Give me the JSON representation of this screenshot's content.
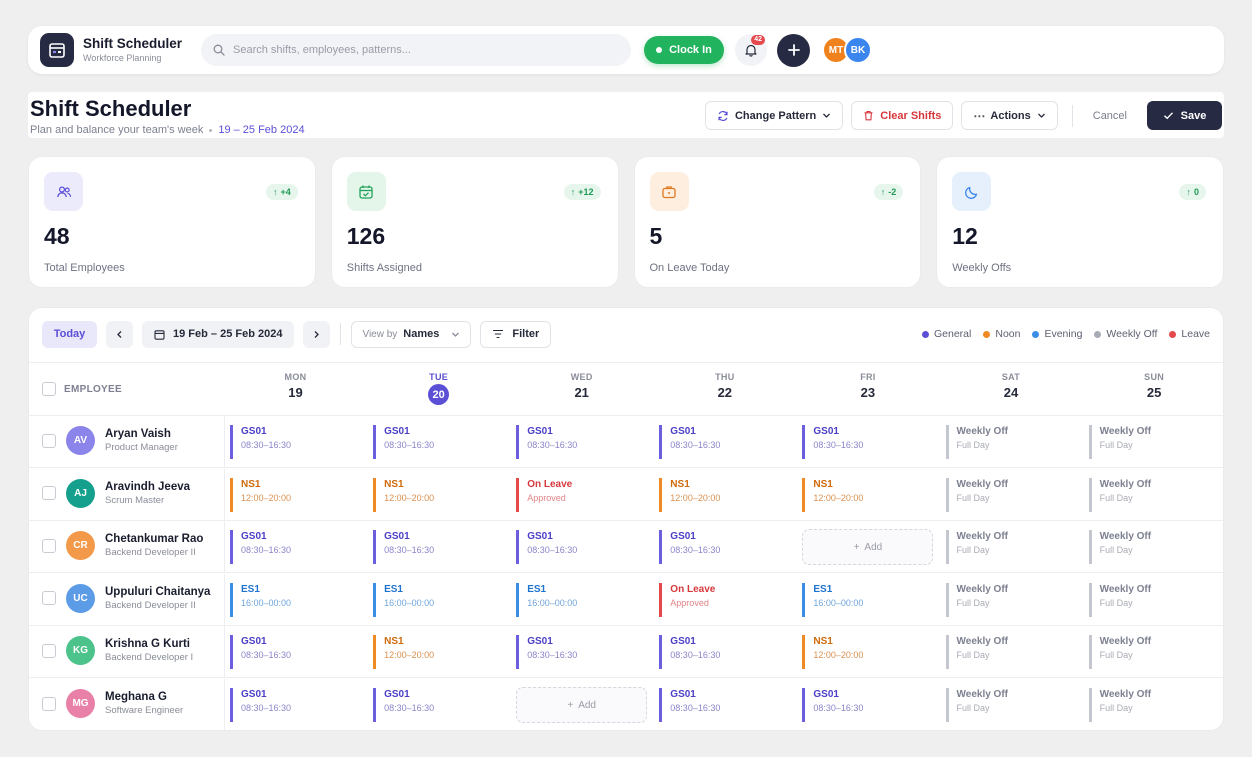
{
  "app": {
    "title": "Shift Scheduler",
    "subtitle": "Workforce Planning",
    "search_placeholder": "Search shifts, employees, patterns...",
    "clock_in_label": "Clock In",
    "notification_count": "42",
    "avatars": [
      {
        "initials": "MT",
        "color": "#f0821e"
      },
      {
        "initials": "BK",
        "color": "#3a86ee"
      }
    ]
  },
  "header": {
    "title": "Shift Scheduler",
    "subtitle": "Plan and balance your team's week",
    "week_range": "19 – 25 Feb 2024",
    "change_pattern_label": "Change Pattern",
    "clear_shifts_label": "Clear Shifts",
    "actions_label": "Actions",
    "cancel_label": "Cancel",
    "save_label": "Save"
  },
  "stats": [
    {
      "value": "48",
      "label": "Total Employees",
      "delta": "+4",
      "icon": "users-icon",
      "bg": "#ecebfb",
      "fg": "#5b4fd6"
    },
    {
      "value": "126",
      "label": "Shifts Assigned",
      "delta": "+12",
      "icon": "calendar-check-icon",
      "bg": "#e4f5ea",
      "fg": "#22a35a"
    },
    {
      "value": "5",
      "label": "On Leave Today",
      "delta": "-2",
      "icon": "briefcase-icon",
      "bg": "#fdeee0",
      "fg": "#e07a1f"
    },
    {
      "value": "12",
      "label": "Weekly Offs",
      "delta": "0",
      "icon": "moon-icon",
      "bg": "#e6f0fc",
      "fg": "#3a86ee"
    }
  ],
  "toolbar": {
    "today_label": "Today",
    "range_label": "19 Feb – 25 Feb 2024",
    "view_by_label": "View by",
    "view_by_value": "Names",
    "filter_label": "Filter"
  },
  "legend": [
    {
      "label": "General",
      "color": "#5b4fd6"
    },
    {
      "label": "Noon",
      "color": "#f08a24"
    },
    {
      "label": "Evening",
      "color": "#3a8ee6"
    },
    {
      "label": "Weekly Off",
      "color": "#a9abb5"
    },
    {
      "label": "Leave",
      "color": "#e5484d"
    }
  ],
  "grid": {
    "employee_header": "EMPLOYEE",
    "add_label": "Add",
    "days": [
      {
        "name": "MON",
        "num": "19",
        "today": false
      },
      {
        "name": "TUE",
        "num": "20",
        "today": true
      },
      {
        "name": "WED",
        "num": "21",
        "today": false
      },
      {
        "name": "THU",
        "num": "22",
        "today": false
      },
      {
        "name": "FRI",
        "num": "23",
        "today": false
      },
      {
        "name": "SAT",
        "num": "24",
        "today": false
      },
      {
        "name": "SUN",
        "num": "25",
        "today": false
      }
    ]
  },
  "employees": [
    {
      "initials": "AV",
      "name": "Aryan Vaish",
      "role": "Product Manager",
      "color": "#8b84ea",
      "shifts": [
        {
          "type": "general",
          "code": "GS01",
          "time": "08:30–16:30"
        },
        {
          "type": "general",
          "code": "GS01",
          "time": "08:30–16:30"
        },
        {
          "type": "general",
          "code": "GS01",
          "time": "08:30–16:30"
        },
        {
          "type": "general",
          "code": "GS01",
          "time": "08:30–16:30"
        },
        {
          "type": "general",
          "code": "GS01",
          "time": "08:30–16:30"
        },
        {
          "type": "weekoff",
          "code": "Weekly Off",
          "time": "Full Day"
        },
        {
          "type": "weekoff",
          "code": "Weekly Off",
          "time": "Full Day"
        }
      ]
    },
    {
      "initials": "AJ",
      "name": "Aravindh Jeeva",
      "role": "Scrum Master",
      "color": "#14a08c",
      "shifts": [
        {
          "type": "noon",
          "code": "NS1",
          "time": "12:00–20:00"
        },
        {
          "type": "noon",
          "code": "NS1",
          "time": "12:00–20:00"
        },
        {
          "type": "leave",
          "code": "On Leave",
          "time": "Approved"
        },
        {
          "type": "noon",
          "code": "NS1",
          "time": "12:00–20:00"
        },
        {
          "type": "noon",
          "code": "NS1",
          "time": "12:00–20:00"
        },
        {
          "type": "weekoff",
          "code": "Weekly Off",
          "time": "Full Day"
        },
        {
          "type": "weekoff",
          "code": "Weekly Off",
          "time": "Full Day"
        }
      ]
    },
    {
      "initials": "CR",
      "name": "Chetankumar Rao",
      "role": "Backend Developer II",
      "color": "#f2994a",
      "shifts": [
        {
          "type": "general",
          "code": "GS01",
          "time": "08:30–16:30"
        },
        {
          "type": "general",
          "code": "GS01",
          "time": "08:30–16:30"
        },
        {
          "type": "general",
          "code": "GS01",
          "time": "08:30–16:30"
        },
        {
          "type": "general",
          "code": "GS01",
          "time": "08:30–16:30"
        },
        {
          "type": "add"
        },
        {
          "type": "weekoff",
          "code": "Weekly Off",
          "time": "Full Day"
        },
        {
          "type": "weekoff",
          "code": "Weekly Off",
          "time": "Full Day"
        }
      ]
    },
    {
      "initials": "UC",
      "name": "Uppuluri Chaitanya",
      "role": "Backend Developer II",
      "color": "#5c9ce6",
      "shifts": [
        {
          "type": "evening",
          "code": "ES1",
          "time": "16:00–00:00"
        },
        {
          "type": "evening",
          "code": "ES1",
          "time": "16:00–00:00"
        },
        {
          "type": "evening",
          "code": "ES1",
          "time": "16:00–00:00"
        },
        {
          "type": "leave",
          "code": "On Leave",
          "time": "Approved"
        },
        {
          "type": "evening",
          "code": "ES1",
          "time": "16:00–00:00"
        },
        {
          "type": "weekoff",
          "code": "Weekly Off",
          "time": "Full Day"
        },
        {
          "type": "weekoff",
          "code": "Weekly Off",
          "time": "Full Day"
        }
      ]
    },
    {
      "initials": "KG",
      "name": "Krishna G Kurti",
      "role": "Backend Developer I",
      "color": "#4cc38a",
      "shifts": [
        {
          "type": "general",
          "code": "GS01",
          "time": "08:30–16:30"
        },
        {
          "type": "noon",
          "code": "NS1",
          "time": "12:00–20:00"
        },
        {
          "type": "general",
          "code": "GS01",
          "time": "08:30–16:30"
        },
        {
          "type": "general",
          "code": "GS01",
          "time": "08:30–16:30"
        },
        {
          "type": "noon",
          "code": "NS1",
          "time": "12:00–20:00"
        },
        {
          "type": "weekoff",
          "code": "Weekly Off",
          "time": "Full Day"
        },
        {
          "type": "weekoff",
          "code": "Weekly Off",
          "time": "Full Day"
        }
      ]
    },
    {
      "initials": "MG",
      "name": "Meghana G",
      "role": "Software Engineer",
      "color": "#e880a8",
      "shifts": [
        {
          "type": "general",
          "code": "GS01",
          "time": "08:30–16:30"
        },
        {
          "type": "general",
          "code": "GS01",
          "time": "08:30–16:30"
        },
        {
          "type": "add"
        },
        {
          "type": "general",
          "code": "GS01",
          "time": "08:30–16:30"
        },
        {
          "type": "general",
          "code": "GS01",
          "time": "08:30–16:30"
        },
        {
          "type": "weekoff",
          "code": "Weekly Off",
          "time": "Full Day"
        },
        {
          "type": "weekoff",
          "code": "Weekly Off",
          "time": "Full Day"
        }
      ]
    }
  ]
}
